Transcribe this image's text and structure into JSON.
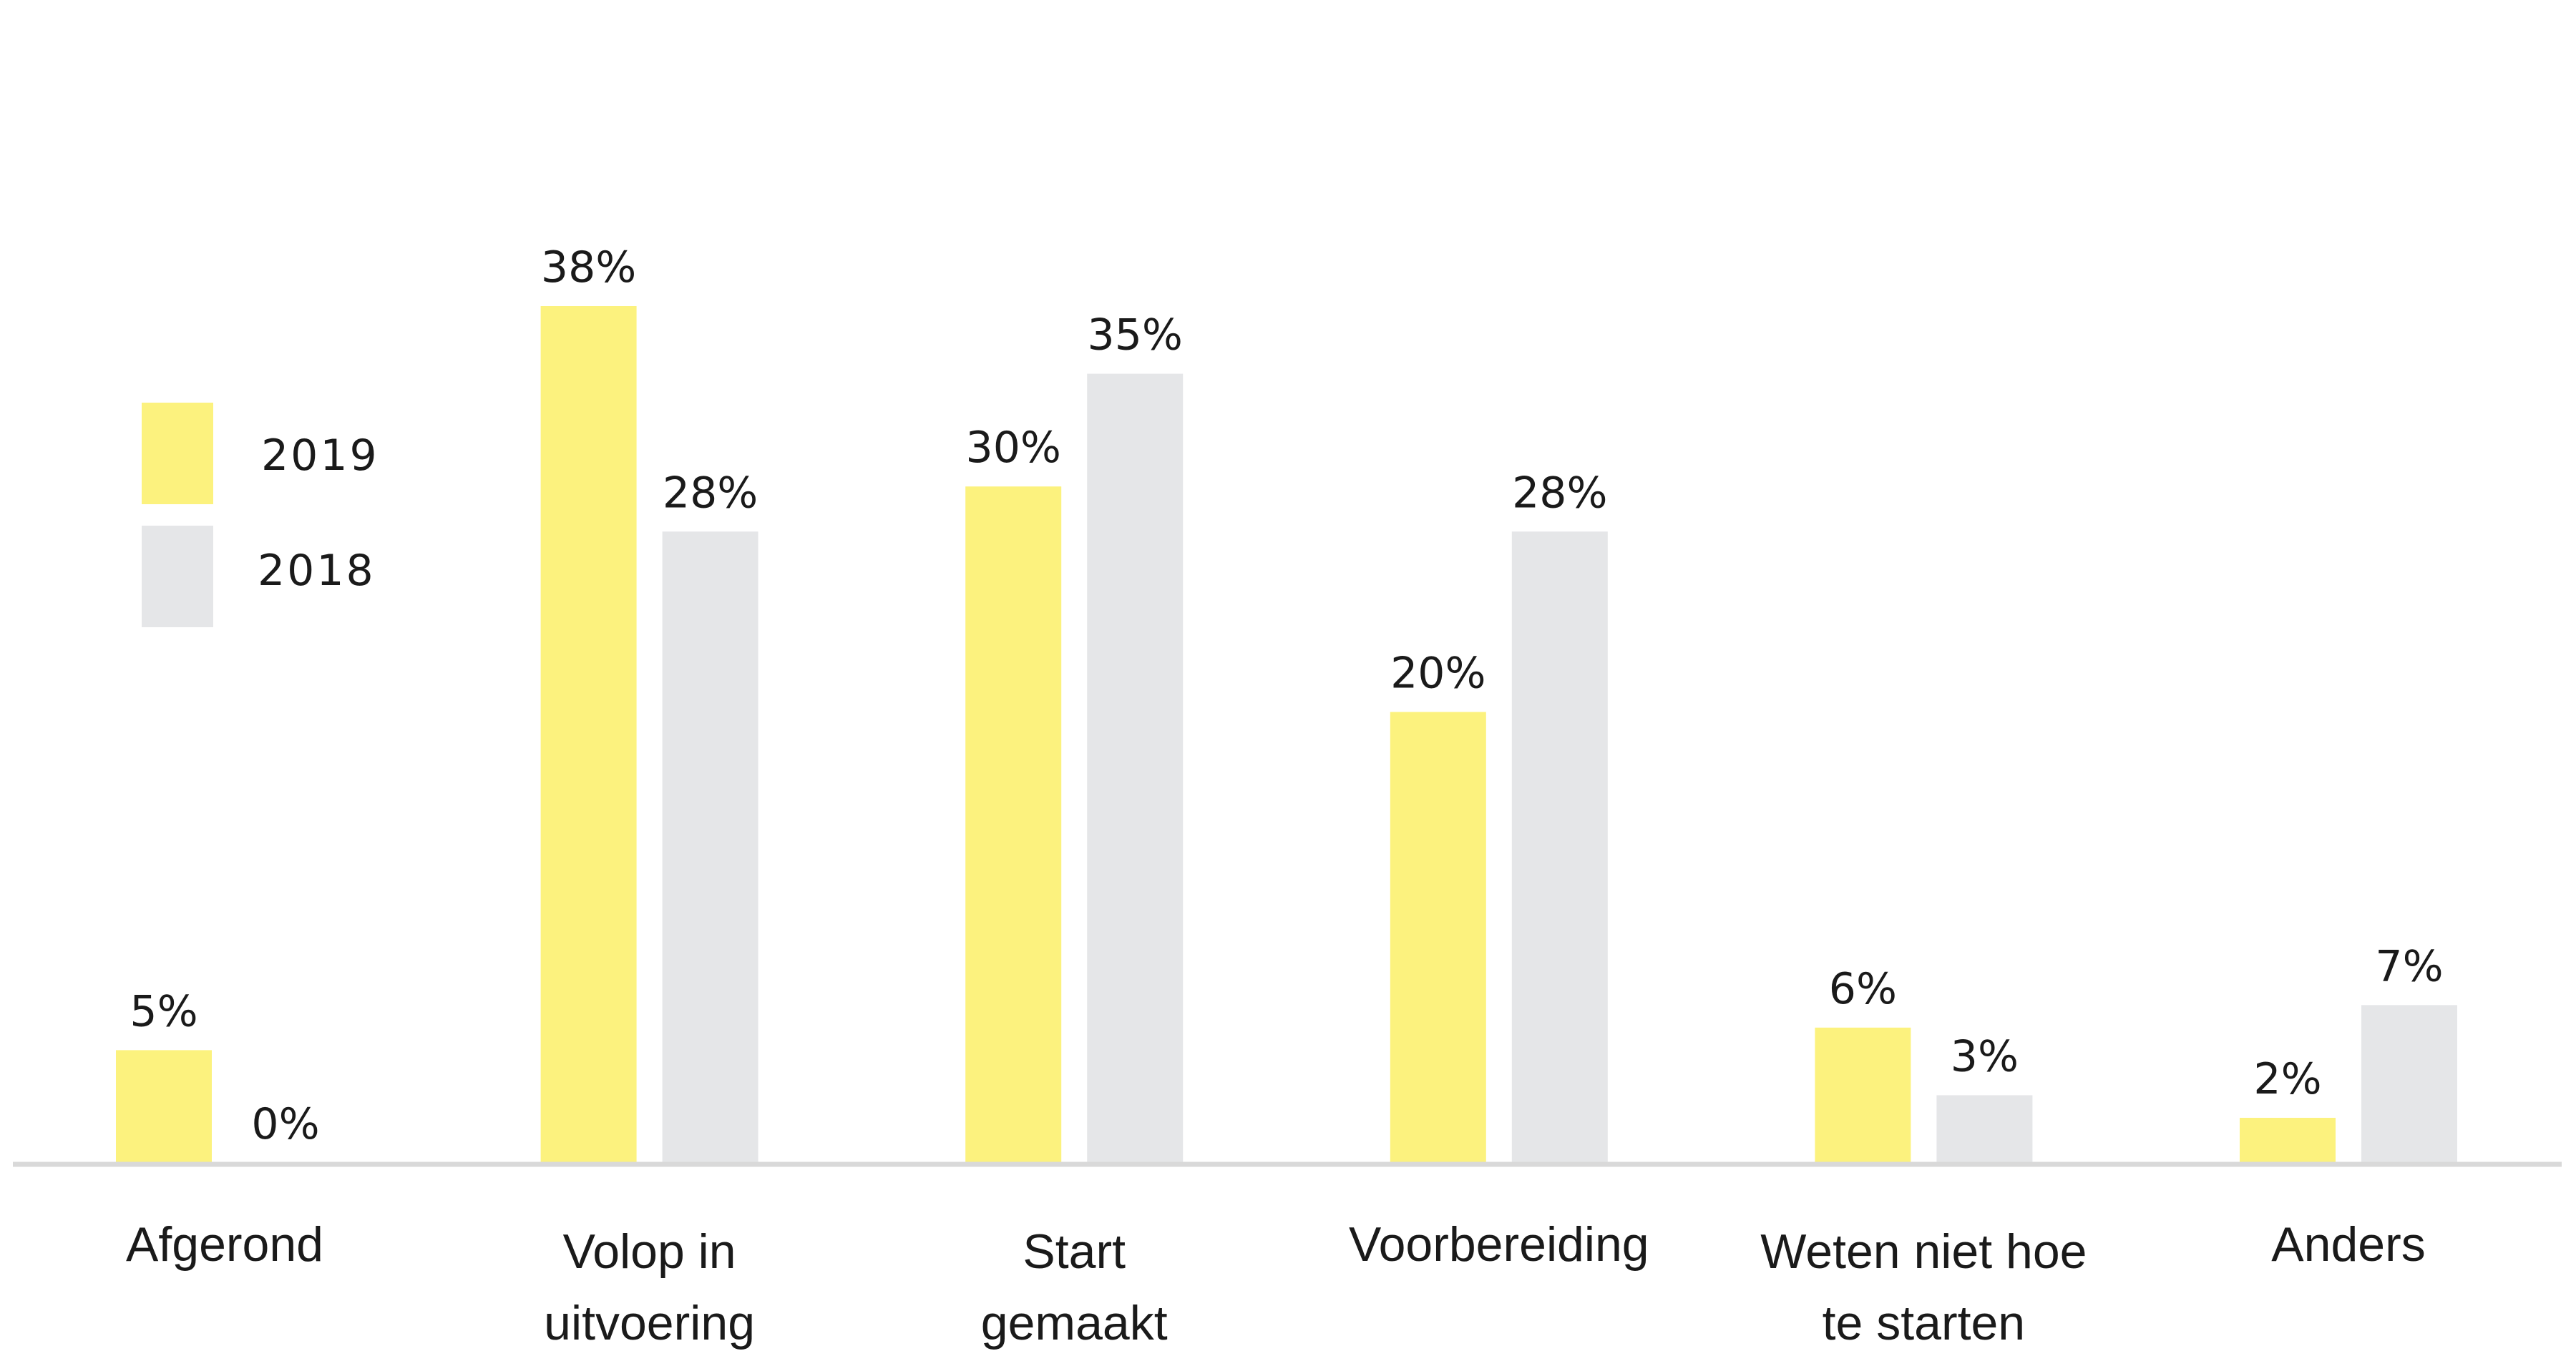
{
  "chart_data": {
    "type": "bar",
    "categories": [
      [
        "Afgerond"
      ],
      [
        "Volop in",
        "uitvoering"
      ],
      [
        "Start",
        "gemaakt"
      ],
      [
        "Voorbereiding"
      ],
      [
        "Weten niet hoe",
        "te starten"
      ],
      [
        "Anders"
      ]
    ],
    "series": [
      {
        "name": "2019",
        "color": "#fcf27e",
        "values": [
          5,
          38,
          30,
          20,
          6,
          2
        ],
        "labels": [
          "5%",
          "38%",
          "30%",
          "20%",
          "6%",
          "2%"
        ]
      },
      {
        "name": "2018",
        "color": "#e5e6e8",
        "values": [
          0,
          28,
          35,
          28,
          3,
          7
        ],
        "labels": [
          "0%",
          "28%",
          "35%",
          "28%",
          "3%",
          "7%"
        ]
      }
    ],
    "ylim": [
      0,
      38
    ],
    "legend_position": "left",
    "grid": false,
    "axis_color": "#d9d9d9"
  }
}
